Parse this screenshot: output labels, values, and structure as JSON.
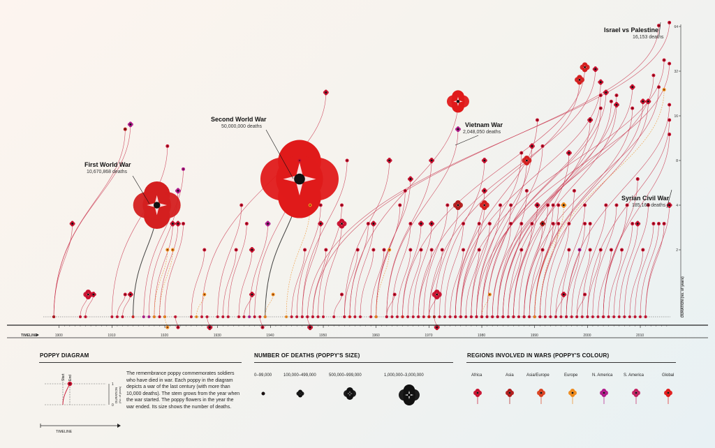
{
  "chart_data": {
    "type": "scatter",
    "title": "",
    "x_axis": {
      "label": "TIMELINE",
      "ticks": [
        1900,
        1910,
        1920,
        1930,
        1940,
        1950,
        1960,
        1970,
        1980,
        1990,
        2000,
        2010
      ],
      "range": [
        1897,
        2017
      ]
    },
    "y_axis": {
      "label": "DURATION (no. of years)",
      "scale": "log2",
      "ticks": [
        2,
        4,
        8,
        16,
        32,
        64
      ]
    },
    "annotations": [
      {
        "name": "First World War",
        "deaths": "10,670,868 deaths"
      },
      {
        "name": "Second World War",
        "deaths": "50,000,000 deaths"
      },
      {
        "name": "Vietnam War",
        "deaths": "2,048,050 deaths"
      },
      {
        "name": "Israel vs Palestine",
        "deaths": "16,153 deaths"
      },
      {
        "name": "Syrian Civil War",
        "deaths": "185,165 deaths"
      }
    ],
    "wars": [
      {
        "s": 1899,
        "e": 1902,
        "size": 1,
        "color": "#c8102e"
      },
      {
        "s": 1899,
        "e": 1913,
        "size": 1,
        "color": "#b0198a"
      },
      {
        "s": 1899,
        "e": 1912,
        "size": 0,
        "color": "#b01a1a"
      },
      {
        "s": 1904,
        "e": 1905,
        "size": 2,
        "color": "#c8102e"
      },
      {
        "s": 1905,
        "e": 1906,
        "size": 1,
        "color": "#c8102e"
      },
      {
        "s": 1910,
        "e": 1920,
        "size": 0,
        "color": "#c8102e"
      },
      {
        "s": 1911,
        "e": 1912,
        "size": 0,
        "color": "#c8102e"
      },
      {
        "s": 1912,
        "e": 1913,
        "size": 1,
        "color": "#c8102e"
      },
      {
        "s": 1914,
        "e": 1918,
        "size": 4,
        "color": "#d41f1f",
        "name": "ww1"
      },
      {
        "s": 1916,
        "e": 1923,
        "size": 0,
        "color": "#b0198a"
      },
      {
        "s": 1917,
        "e": 1922,
        "size": 1,
        "color": "#b0198a"
      },
      {
        "s": 1918,
        "e": 1921,
        "size": 1,
        "color": "#c8102e"
      },
      {
        "s": 1918,
        "e": 1920,
        "size": 0,
        "color": "#ee8a1c"
      },
      {
        "s": 1919,
        "e": 1921,
        "size": 0,
        "color": "#ee8a1c"
      },
      {
        "s": 1919,
        "e": 1922,
        "size": 1,
        "color": "#c8102e"
      },
      {
        "s": 1920,
        "e": 1923,
        "size": 0,
        "color": "#c8102e"
      },
      {
        "s": 1920,
        "e": 1920,
        "size": 0,
        "color": "#ee8a1c"
      },
      {
        "s": 1922,
        "e": 1922,
        "size": 0,
        "color": "#c8102e"
      },
      {
        "s": 1925,
        "e": 1927,
        "size": 0,
        "color": "#c8102e"
      },
      {
        "s": 1926,
        "e": 1927,
        "size": 0,
        "color": "#ee8a1c"
      },
      {
        "s": 1927,
        "e": 1950,
        "size": 1,
        "color": "#c8102e"
      },
      {
        "s": 1928,
        "e": 1928,
        "size": 1,
        "color": "#c8102e"
      },
      {
        "s": 1930,
        "e": 1934,
        "size": 0,
        "color": "#c8102e"
      },
      {
        "s": 1931,
        "e": 1933,
        "size": 0,
        "color": "#c8102e"
      },
      {
        "s": 1932,
        "e": 1935,
        "size": 0,
        "color": "#c8102e"
      },
      {
        "s": 1934,
        "e": 1936,
        "size": 1,
        "color": "#c8102e"
      },
      {
        "s": 1935,
        "e": 1936,
        "size": 1,
        "color": "#c8102e"
      },
      {
        "s": 1936,
        "e": 1939,
        "size": 1,
        "color": "#b0198a"
      },
      {
        "s": 1937,
        "e": 1945,
        "size": 0,
        "color": "#c8102e"
      },
      {
        "s": 1938,
        "e": 1938,
        "size": 0,
        "color": "#c8102e"
      },
      {
        "s": 1939,
        "e": 1945,
        "size": 5,
        "color": "#e01a1a",
        "name": "ww2"
      },
      {
        "s": 1939,
        "e": 1940,
        "size": 0,
        "color": "#ee8a1c"
      },
      {
        "s": 1943,
        "e": 1947,
        "size": 0,
        "color": "#ee8a1c"
      },
      {
        "s": 1944,
        "e": 1946,
        "size": 0,
        "color": "#c8102e"
      },
      {
        "s": 1945,
        "e": 1949,
        "size": 0,
        "color": "#c8102e"
      },
      {
        "s": 1946,
        "e": 1954,
        "size": 0,
        "color": "#c8102e"
      },
      {
        "s": 1946,
        "e": 1949,
        "size": 1,
        "color": "#c8102e"
      },
      {
        "s": 1947,
        "e": 1947,
        "size": 1,
        "color": "#c8102e"
      },
      {
        "s": 1948,
        "e": 1950,
        "size": 0,
        "color": "#c8102e"
      },
      {
        "s": 1949,
        "e": 1953,
        "size": 0,
        "color": "#c8102e"
      },
      {
        "s": 1950,
        "e": 1953,
        "size": 2,
        "color": "#c8102e"
      },
      {
        "s": 1952,
        "e": 1953,
        "size": 0,
        "color": "#c8102e"
      },
      {
        "s": 1954,
        "e": 1956,
        "size": 0,
        "color": "#c8102e"
      },
      {
        "s": 1954,
        "e": 1962,
        "size": 1,
        "color": "#c8102e"
      },
      {
        "s": 1955,
        "e": 1958,
        "size": 0,
        "color": "#c8102e"
      },
      {
        "s": 1956,
        "e": 1959,
        "size": 1,
        "color": "#c8102e"
      },
      {
        "s": 1957,
        "e": 1959,
        "size": 0,
        "color": "#c8102e"
      },
      {
        "s": 1959,
        "e": 1961,
        "size": 0,
        "color": "#c8102e"
      },
      {
        "s": 1960,
        "e": 1964,
        "size": 0,
        "color": "#c8102e"
      },
      {
        "s": 1960,
        "e": 1965,
        "size": 0,
        "color": "#c8102e"
      },
      {
        "s": 1960,
        "e": 1966,
        "size": 1,
        "color": "#c8102e"
      },
      {
        "s": 1962,
        "e": 1970,
        "size": 1,
        "color": "#c8102e"
      },
      {
        "s": 1962,
        "e": 1975,
        "size": 1,
        "color": "#b0198a"
      },
      {
        "s": 1962,
        "e": 1963,
        "size": 0,
        "color": "#c8102e"
      },
      {
        "s": 1963,
        "e": 1966,
        "size": 0,
        "color": "#c8102e"
      },
      {
        "s": 1964,
        "e": 1966,
        "size": 0,
        "color": "#c8102e"
      },
      {
        "s": 1965,
        "e": 1968,
        "size": 1,
        "color": "#c8102e"
      },
      {
        "s": 1966,
        "e": 1968,
        "size": 0,
        "color": "#c8102e"
      },
      {
        "s": 1967,
        "e": 1970,
        "size": 1,
        "color": "#c8102e"
      },
      {
        "s": 1968,
        "e": 1970,
        "size": 0,
        "color": "#c8102e"
      },
      {
        "s": 1969,
        "e": 1973,
        "size": 0,
        "color": "#c8102e"
      },
      {
        "s": 1970,
        "e": 1971,
        "size": 2,
        "color": "#c8102e"
      },
      {
        "s": 1971,
        "e": 1971,
        "size": 1,
        "color": "#c8102e"
      },
      {
        "s": 1955,
        "e": 1975,
        "size": 3,
        "color": "#e01a1a",
        "name": "vietnam"
      },
      {
        "s": 1960,
        "e": 1962,
        "size": 0,
        "color": "#ee8a1c"
      },
      {
        "s": 1970,
        "e": 1972,
        "size": 0,
        "color": "#c8102e"
      },
      {
        "s": 1971,
        "e": 1975,
        "size": 2,
        "color": "#b01a1a"
      },
      {
        "s": 1972,
        "e": 1980,
        "size": 1,
        "color": "#c8102e"
      },
      {
        "s": 1973,
        "e": 1976,
        "size": 0,
        "color": "#c8102e"
      },
      {
        "s": 1974,
        "e": 1976,
        "size": 0,
        "color": "#c8102e"
      },
      {
        "s": 1975,
        "e": 1980,
        "size": 1,
        "color": "#c8102e"
      },
      {
        "s": 1975,
        "e": 1990,
        "size": 0,
        "color": "#c8102e"
      },
      {
        "s": 1976,
        "e": 1979,
        "size": 0,
        "color": "#c8102e"
      },
      {
        "s": 1976,
        "e": 1980,
        "size": 2,
        "color": "#d41f1f"
      },
      {
        "s": 1977,
        "e": 1979,
        "size": 0,
        "color": "#c8102e"
      },
      {
        "s": 1978,
        "e": 1981,
        "size": 0,
        "color": "#c8102e"
      },
      {
        "s": 1978,
        "e": 1987,
        "size": 0,
        "color": "#c8102e"
      },
      {
        "s": 1979,
        "e": 1983,
        "size": 0,
        "color": "#c8102e"
      },
      {
        "s": 1979,
        "e": 1989,
        "size": 1,
        "color": "#c8102e"
      },
      {
        "s": 1980,
        "e": 1988,
        "size": 2,
        "color": "#d41f1f"
      },
      {
        "s": 1980,
        "e": 1981,
        "size": 0,
        "color": "#ee8a1c"
      },
      {
        "s": 1981,
        "e": 1985,
        "size": 0,
        "color": "#c8102e"
      },
      {
        "s": 1981,
        "e": 1991,
        "size": 0,
        "color": "#c8102e"
      },
      {
        "s": 1982,
        "e": 1985,
        "size": 0,
        "color": "#c8102e"
      },
      {
        "s": 1983,
        "e": 1988,
        "size": 0,
        "color": "#c8102e"
      },
      {
        "s": 1983,
        "e": 2005,
        "size": 0,
        "color": "#c8102e"
      },
      {
        "s": 1984,
        "e": 1987,
        "size": 0,
        "color": "#c8102e"
      },
      {
        "s": 1985,
        "e": 1987,
        "size": 0,
        "color": "#c8102e"
      },
      {
        "s": 1986,
        "e": 1989,
        "size": 0,
        "color": "#c8102e"
      },
      {
        "s": 1986,
        "e": 1990,
        "size": 1,
        "color": "#c8102e"
      },
      {
        "s": 1987,
        "e": 1996,
        "size": 1,
        "color": "#c8102e"
      },
      {
        "s": 1988,
        "e": 1991,
        "size": 1,
        "color": "#b01a1a"
      },
      {
        "s": 1988,
        "e": 1992,
        "size": 0,
        "color": "#c8102e"
      },
      {
        "s": 1989,
        "e": 1991,
        "size": 0,
        "color": "#c8102e"
      },
      {
        "s": 1989,
        "e": 1993,
        "size": 0,
        "color": "#c8102e"
      },
      {
        "s": 1990,
        "e": 1993,
        "size": 0,
        "color": "#c8102e"
      },
      {
        "s": 1990,
        "e": 1994,
        "size": 0,
        "color": "#c8102e"
      },
      {
        "s": 1991,
        "e": 1995,
        "size": 1,
        "color": "#ee8a1c"
      },
      {
        "s": 1991,
        "e": 1994,
        "size": 0,
        "color": "#c8102e"
      },
      {
        "s": 1992,
        "e": 1997,
        "size": 0,
        "color": "#c8102e"
      },
      {
        "s": 1993,
        "e": 1996,
        "size": 0,
        "color": "#c8102e"
      },
      {
        "s": 1994,
        "e": 1995,
        "size": 1,
        "color": "#c8102e"
      },
      {
        "s": 1994,
        "e": 1996,
        "size": 0,
        "color": "#c8102e"
      },
      {
        "s": 1995,
        "e": 1999,
        "size": 0,
        "color": "#c8102e"
      },
      {
        "s": 1996,
        "e": 1999,
        "size": 0,
        "color": "#c8102e"
      },
      {
        "s": 1996,
        "e": 1998,
        "size": 0,
        "color": "#b0198a"
      },
      {
        "s": 1997,
        "e": 2000,
        "size": 0,
        "color": "#c8102e"
      },
      {
        "s": 1998,
        "e": 1999,
        "size": 0,
        "color": "#c8102e"
      },
      {
        "s": 1998,
        "e": 2000,
        "size": 0,
        "color": "#c8102e"
      },
      {
        "s": 1990,
        "e": 2010,
        "size": 1,
        "color": "#c8102e"
      },
      {
        "s": 1984,
        "e": 2002,
        "size": 0,
        "color": "#c8102e"
      },
      {
        "s": 1985,
        "e": 2000,
        "size": 1,
        "color": "#c8102e"
      },
      {
        "s": 1980,
        "e": 2002,
        "size": 0,
        "color": "#c8102e"
      },
      {
        "s": 1986,
        "e": 2005,
        "size": 1,
        "color": "#c8102e"
      },
      {
        "s": 1970,
        "e": 1998,
        "size": 2,
        "color": "#d41f1f"
      },
      {
        "s": 1965,
        "e": 1999,
        "size": 2,
        "color": "#d41f1f"
      },
      {
        "s": 1968,
        "e": 2001,
        "size": 1,
        "color": "#c8102e"
      },
      {
        "s": 1975,
        "e": 2002,
        "size": 1,
        "color": "#c8102e"
      },
      {
        "s": 1980,
        "e": 2003,
        "size": 1,
        "color": "#c8102e"
      },
      {
        "s": 1984,
        "e": 2004,
        "size": 0,
        "color": "#c8102e"
      },
      {
        "s": 1983,
        "e": 2008,
        "size": 1,
        "color": "#c8102e"
      },
      {
        "s": 1990,
        "e": 2008,
        "size": 0,
        "color": "#c8102e"
      },
      {
        "s": 1999,
        "e": 2003,
        "size": 0,
        "color": "#c8102e"
      },
      {
        "s": 2000,
        "e": 2002,
        "size": 0,
        "color": "#c8102e"
      },
      {
        "s": 2001,
        "e": 2005,
        "size": 0,
        "color": "#c8102e"
      },
      {
        "s": 2002,
        "e": 2004,
        "size": 0,
        "color": "#c8102e"
      },
      {
        "s": 2003,
        "e": 2007,
        "size": 0,
        "color": "#c8102e"
      },
      {
        "s": 2003,
        "e": 2009,
        "size": 0,
        "color": "#c8102e"
      },
      {
        "s": 2004,
        "e": 2006,
        "size": 0,
        "color": "#c8102e"
      },
      {
        "s": 2005,
        "e": 2008,
        "size": 0,
        "color": "#c8102e"
      },
      {
        "s": 2006,
        "e": 2009,
        "size": 1,
        "color": "#c8102e"
      },
      {
        "s": 2007,
        "e": 2011,
        "size": 0,
        "color": "#c8102e"
      },
      {
        "s": 2008,
        "e": 2010,
        "size": 0,
        "color": "#c8102e"
      },
      {
        "s": 2009,
        "e": 2012,
        "size": 0,
        "color": "#c8102e"
      },
      {
        "s": 2010,
        "e": 2013,
        "size": 0,
        "color": "#c8102e"
      },
      {
        "s": 2011,
        "e": 2014,
        "size": 0,
        "color": "#c8102e"
      },
      {
        "s": 1991,
        "e": 2011,
        "size": 1,
        "color": "#c8102e"
      },
      {
        "s": 1982,
        "e": 2012,
        "size": 0,
        "color": "#c8102e"
      },
      {
        "s": 1988,
        "e": 2013,
        "size": 0,
        "color": "#c8102e"
      },
      {
        "s": 1976,
        "e": 2014,
        "size": 0,
        "color": "#c8102e"
      },
      {
        "s": 1990,
        "e": 2014,
        "size": 0,
        "color": "#ee8a1c"
      },
      {
        "s": 1996,
        "e": 2015,
        "size": 0,
        "color": "#c8102e"
      },
      {
        "s": 2000,
        "e": 2015,
        "size": 0,
        "color": "#c8102e"
      },
      {
        "s": 2003,
        "e": 2015,
        "size": 0,
        "color": "#c8102e"
      },
      {
        "s": 1948,
        "e": 2013,
        "size": 0,
        "color": "#c8102e",
        "name": "israel"
      },
      {
        "s": 2011,
        "e": 2015,
        "size": 1,
        "color": "#c8102e",
        "name": "syria"
      },
      {
        "s": 1947,
        "e": 2015,
        "size": 0,
        "color": "#c8102e"
      },
      {
        "s": 1979,
        "e": 2015,
        "size": 0,
        "color": "#c8102e"
      }
    ]
  },
  "poppy_diagram": {
    "title": "POPPY DIAGRAM",
    "text": "The remembrance poppy commemorates soldiers who have died in war. Each poppy in the diagram depicts a war of the last century (with more than 10,000 deaths). The stem grows from the year when the war started. The poppy flowers in the year the war ended. Its size shows the number of deaths.",
    "start_label": "Start",
    "end_label": "End",
    "duration_label": "DURATION",
    "duration_unit": "(No. of years)",
    "tick_1": "1",
    "tick_0": "0",
    "timeline_label": "TIMELINE"
  },
  "deaths_legend": {
    "title": "NUMBER OF DEATHS (POPPY'S SIZE)",
    "items": [
      "0–99,000",
      "100,000–499,000",
      "500,000–999,000",
      "1,000,000–3,000,000"
    ]
  },
  "regions_legend": {
    "title": "REGIONS INVOLVED IN WARS (POPPY'S COLOUR)",
    "items": [
      {
        "label": "Africa",
        "color": "#c8102e"
      },
      {
        "label": "Asia",
        "color": "#b01a1a"
      },
      {
        "label": "Asia/Europe",
        "color": "#d9401f"
      },
      {
        "label": "Europe",
        "color": "#ee8a1c"
      },
      {
        "label": "N. America",
        "color": "#b0198a"
      },
      {
        "label": "S. America",
        "color": "#c22060"
      },
      {
        "label": "Global",
        "color": "#e01a1a"
      }
    ]
  }
}
